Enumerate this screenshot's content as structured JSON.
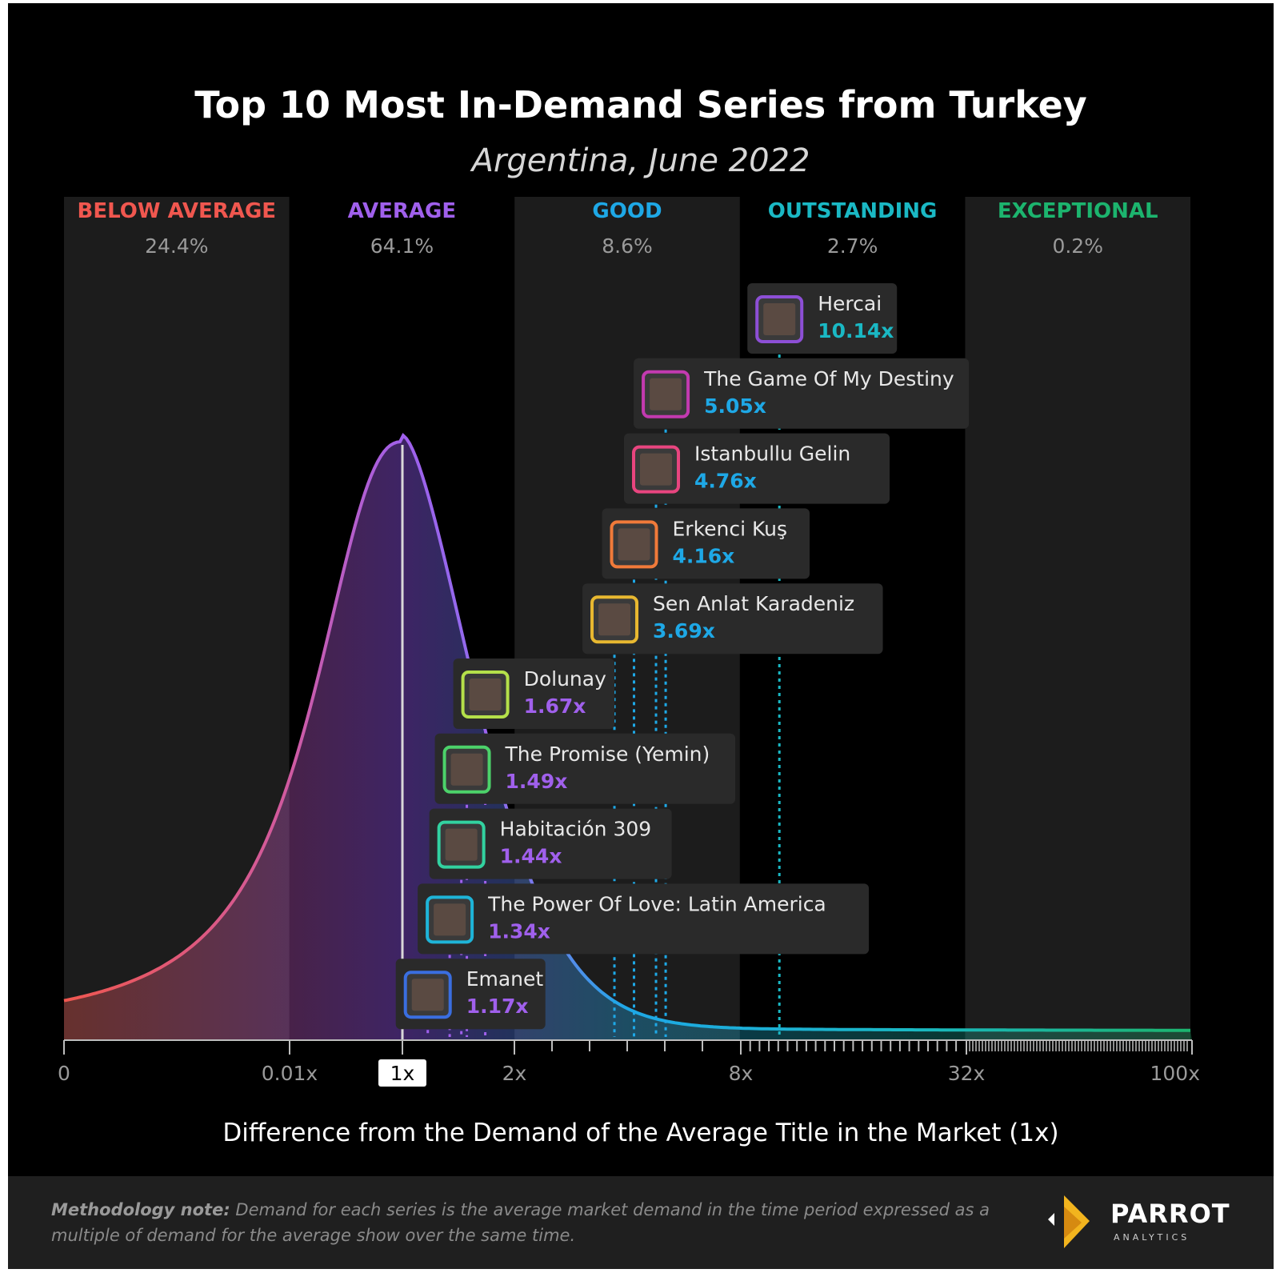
{
  "chart_data": {
    "type": "area",
    "title": "Top 10 Most In-Demand Series from Turkey",
    "subtitle": "Argentina, June 2022",
    "xlabel": "Difference from the Demand of the Average Title in the Market (1x)",
    "x_ticks": [
      "0",
      "0.01x",
      "1x",
      "2x",
      "8x",
      "32x",
      "100x"
    ],
    "highlight_tick": "1x",
    "bands": [
      {
        "name": "BELOW AVERAGE",
        "percent": "24.4%",
        "color": "#f0574f"
      },
      {
        "name": "AVERAGE",
        "percent": "64.1%",
        "color": "#a060ec"
      },
      {
        "name": "GOOD",
        "percent": "8.6%",
        "color": "#1ea8e6"
      },
      {
        "name": "OUTSTANDING",
        "percent": "2.7%",
        "color": "#1ab8c4"
      },
      {
        "name": "EXCEPTIONAL",
        "percent": "0.2%",
        "color": "#1cb46e"
      }
    ],
    "series": [
      {
        "name": "Hercai",
        "value": 10.14,
        "label": "10.14x",
        "color": "#8d4fd6",
        "value_color": "#1ab8c4"
      },
      {
        "name": "The Game Of My Destiny",
        "value": 5.05,
        "label": "5.05x",
        "color": "#c23ab0",
        "value_color": "#1ea8e6"
      },
      {
        "name": "Istanbullu Gelin",
        "value": 4.76,
        "label": "4.76x",
        "color": "#e8457f",
        "value_color": "#1ea8e6"
      },
      {
        "name": "Erkenci Kuş",
        "value": 4.16,
        "label": "4.16x",
        "color": "#f07a3a",
        "value_color": "#1ea8e6"
      },
      {
        "name": "Sen Anlat Karadeniz",
        "value": 3.69,
        "label": "3.69x",
        "color": "#e8b830",
        "value_color": "#1ea8e6"
      },
      {
        "name": "Dolunay",
        "value": 1.67,
        "label": "1.67x",
        "color": "#b4e04a",
        "value_color": "#a060ec"
      },
      {
        "name": "The Promise (Yemin)",
        "value": 1.49,
        "label": "1.49x",
        "color": "#4cd26a",
        "value_color": "#a060ec"
      },
      {
        "name": "Habitación 309",
        "value": 1.44,
        "label": "1.44x",
        "color": "#32d2a0",
        "value_color": "#a060ec"
      },
      {
        "name": "The Power Of Love: Latin America",
        "value": 1.34,
        "label": "1.34x",
        "color": "#1eb4d8",
        "value_color": "#a060ec"
      },
      {
        "name": "Emanet",
        "value": 1.17,
        "label": "1.17x",
        "color": "#3a6ee0",
        "value_color": "#a060ec"
      }
    ]
  },
  "footer": {
    "note_label": "Methodology note:",
    "note_text": "Demand for each series is the average market demand in the time period expressed as a multiple of demand for the average show over the same time."
  },
  "logo": {
    "name": "PARROT",
    "sub": "ANALYTICS"
  }
}
